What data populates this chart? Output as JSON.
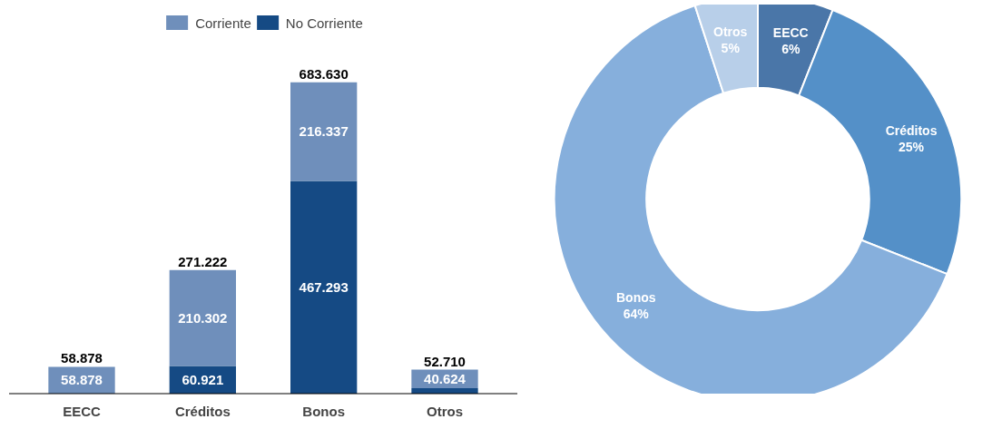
{
  "chart_data": [
    {
      "type": "bar",
      "stacked": true,
      "categories": [
        "EECC",
        "Créditos",
        "Bonos",
        "Otros"
      ],
      "legend": "top",
      "grid": false,
      "tick_labels": "x",
      "series": [
        {
          "name": "No Corriente",
          "color": "#154a84",
          "values": [
            null,
            60921,
            467293,
            12086
          ],
          "value_labels": [
            null,
            "60.921",
            "467.293",
            null
          ]
        },
        {
          "name": "Corriente",
          "color": "#6f8fbb",
          "values": [
            58878,
            210302,
            216337,
            40624
          ],
          "value_labels": [
            "58.878",
            "210.302",
            "216.337",
            "40.624"
          ]
        }
      ],
      "totals": [
        "58.878",
        "271.222",
        "683.630",
        "52.710"
      ]
    },
    {
      "type": "donut",
      "categories": [
        "EECC",
        "Créditos",
        "Bonos",
        "Otros"
      ],
      "values": [
        6,
        25,
        64,
        5
      ],
      "colors": [
        "#4a76a8",
        "#5490c8",
        "#86afdc",
        "#b8cfe9"
      ],
      "value_labels": [
        "6%",
        "25%",
        "64%",
        "5%"
      ]
    }
  ]
}
